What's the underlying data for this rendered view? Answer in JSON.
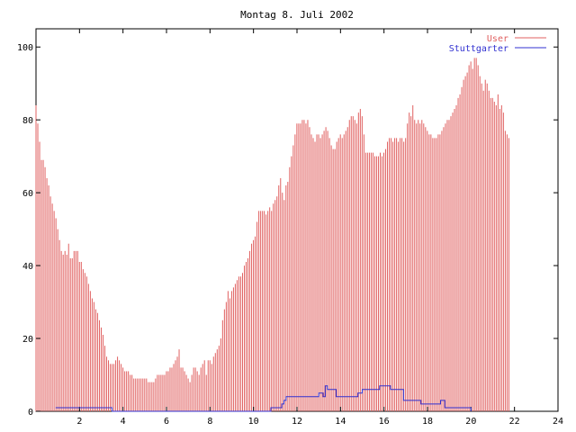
{
  "chart_data": {
    "type": "bar",
    "title": "Montag 8. Juli 2002",
    "xlabel": "",
    "ylabel": "",
    "xlim": [
      0,
      24
    ],
    "ylim": [
      0,
      105
    ],
    "xticks": [
      2,
      4,
      6,
      8,
      10,
      12,
      14,
      16,
      18,
      20,
      22,
      24
    ],
    "yticks": [
      0,
      20,
      40,
      60,
      80,
      100
    ],
    "grid": false,
    "legend_position": "top-right",
    "series": [
      {
        "name": "User",
        "color": "#e06060",
        "style": "impulses",
        "x_start": 0.0,
        "x_step": 0.0833,
        "values": [
          84,
          79,
          74,
          69,
          69,
          67,
          64,
          62,
          59,
          57,
          55,
          53,
          50,
          47,
          44,
          43,
          44,
          43,
          46,
          42,
          42,
          44,
          44,
          44,
          41,
          41,
          39,
          38,
          37,
          35,
          33,
          31,
          30,
          28,
          27,
          25,
          23,
          21,
          18,
          15,
          14,
          13,
          13,
          13,
          14,
          15,
          14,
          13,
          12,
          11,
          11,
          11,
          10,
          10,
          9,
          9,
          9,
          9,
          9,
          9,
          9,
          9,
          8,
          8,
          8,
          8,
          9,
          10,
          10,
          10,
          10,
          10,
          11,
          11,
          12,
          12,
          13,
          14,
          15,
          17,
          12,
          12,
          11,
          10,
          9,
          8,
          10,
          12,
          12,
          11,
          10,
          12,
          13,
          14,
          10,
          14,
          14,
          13,
          15,
          16,
          17,
          18,
          20,
          25,
          28,
          30,
          33,
          31,
          33,
          34,
          35,
          36,
          37,
          37,
          38,
          40,
          41,
          42,
          44,
          46,
          47,
          48,
          52,
          55,
          55,
          55,
          55,
          54,
          55,
          56,
          55,
          57,
          58,
          59,
          62,
          64,
          60,
          58,
          62,
          63,
          67,
          70,
          73,
          76,
          79,
          79,
          79,
          80,
          80,
          79,
          80,
          78,
          76,
          75,
          74,
          76,
          76,
          75,
          76,
          77,
          78,
          77,
          75,
          73,
          72,
          72,
          74,
          75,
          76,
          75,
          76,
          77,
          78,
          80,
          81,
          81,
          80,
          79,
          82,
          83,
          81,
          76,
          71,
          71,
          71,
          71,
          71,
          70,
          70,
          70,
          71,
          70,
          71,
          72,
          74,
          75,
          75,
          74,
          75,
          75,
          74,
          75,
          75,
          74,
          75,
          79,
          82,
          81,
          84,
          80,
          79,
          80,
          79,
          80,
          79,
          78,
          77,
          76,
          76,
          75,
          75,
          75,
          76,
          76,
          77,
          78,
          79,
          80,
          80,
          81,
          82,
          83,
          84,
          86,
          87,
          89,
          91,
          92,
          93,
          95,
          96,
          94,
          97,
          97,
          95,
          92,
          90,
          88,
          91,
          90,
          88,
          86,
          86,
          85,
          84,
          87,
          83,
          84,
          82,
          77,
          76,
          75
        ]
      },
      {
        "name": "Stuttgarter",
        "color": "#3030d0",
        "style": "steps",
        "points": [
          [
            0.9,
            1
          ],
          [
            3.5,
            1
          ],
          [
            3.5,
            0
          ],
          [
            10.8,
            0
          ],
          [
            10.8,
            1
          ],
          [
            11.3,
            1
          ],
          [
            11.3,
            2
          ],
          [
            11.4,
            2
          ],
          [
            11.4,
            3
          ],
          [
            11.5,
            3
          ],
          [
            11.5,
            4
          ],
          [
            13.0,
            4
          ],
          [
            13.0,
            5
          ],
          [
            13.2,
            5
          ],
          [
            13.2,
            4
          ],
          [
            13.3,
            4
          ],
          [
            13.3,
            7
          ],
          [
            13.4,
            7
          ],
          [
            13.4,
            6
          ],
          [
            13.8,
            6
          ],
          [
            13.8,
            4
          ],
          [
            14.8,
            4
          ],
          [
            14.8,
            5
          ],
          [
            15.0,
            5
          ],
          [
            15.0,
            6
          ],
          [
            15.8,
            6
          ],
          [
            15.8,
            7
          ],
          [
            16.3,
            7
          ],
          [
            16.3,
            6
          ],
          [
            16.9,
            6
          ],
          [
            16.9,
            3
          ],
          [
            17.7,
            3
          ],
          [
            17.7,
            2
          ],
          [
            18.6,
            2
          ],
          [
            18.6,
            3
          ],
          [
            18.8,
            3
          ],
          [
            18.8,
            1
          ],
          [
            20.0,
            1
          ],
          [
            20.0,
            0
          ]
        ]
      }
    ]
  }
}
